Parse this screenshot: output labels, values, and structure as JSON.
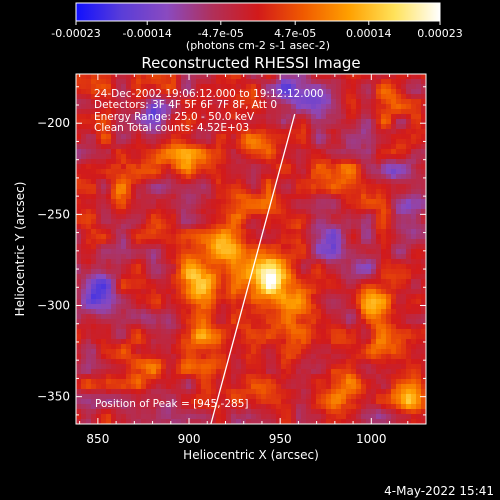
{
  "colorbar": {
    "stops": [
      "#1010ff",
      "#5a3dd8",
      "#8a4ac0",
      "#b0305a",
      "#d21a1a",
      "#f05a00",
      "#ffa000",
      "#ffe25a",
      "#ffffff"
    ],
    "ticks": [
      "-0.00023",
      "-0.00014",
      "-4.7e-05",
      "4.7e-05",
      "0.00014",
      "0.00023"
    ],
    "unit_label": "(photons cm-2 s-1 asec-2)"
  },
  "chart_data": {
    "type": "heatmap",
    "title": "Reconstructed RHESSI Image",
    "xlabel": "Heliocentric X (arcsec)",
    "ylabel": "Heliocentric Y (arcsec)",
    "xlim": [
      838,
      1030
    ],
    "ylim": [
      -365,
      -173
    ],
    "xticks": [
      850,
      900,
      950,
      1000
    ],
    "yticks": [
      -200,
      -250,
      -300,
      -350
    ],
    "vrange": [
      -0.00023,
      0.00023
    ],
    "sources": [
      {
        "x": 945,
        "y": -285,
        "amp": 0.00023,
        "sx": 9,
        "sy": 8
      },
      {
        "x": 905,
        "y": -288,
        "amp": 0.00019,
        "sx": 10,
        "sy": 9
      },
      {
        "x": 920,
        "y": -265,
        "amp": 0.00012,
        "sx": 7,
        "sy": 9
      },
      {
        "x": 930,
        "y": -245,
        "amp": 0.0001,
        "sx": 8,
        "sy": 6
      },
      {
        "x": 905,
        "y": -320,
        "amp": 0.00011,
        "sx": 8,
        "sy": 10
      },
      {
        "x": 960,
        "y": -305,
        "amp": 0.00011,
        "sx": 8,
        "sy": 12
      },
      {
        "x": 1000,
        "y": -298,
        "amp": 0.00014,
        "sx": 6,
        "sy": 6
      },
      {
        "x": 1005,
        "y": -320,
        "amp": 0.00012,
        "sx": 5,
        "sy": 10
      },
      {
        "x": 1020,
        "y": -350,
        "amp": 0.00012,
        "sx": 6,
        "sy": 7
      },
      {
        "x": 895,
        "y": -218,
        "amp": 0.0001,
        "sx": 9,
        "sy": 6
      },
      {
        "x": 935,
        "y": -212,
        "amp": 8e-05,
        "sx": 7,
        "sy": 6
      },
      {
        "x": 985,
        "y": -225,
        "amp": 8e-05,
        "sx": 9,
        "sy": 6
      },
      {
        "x": 860,
        "y": -240,
        "amp": 7e-05,
        "sx": 6,
        "sy": 8
      },
      {
        "x": 875,
        "y": -330,
        "amp": 8e-05,
        "sx": 8,
        "sy": 8
      },
      {
        "x": 940,
        "y": -350,
        "amp": 8e-05,
        "sx": 12,
        "sy": 6
      },
      {
        "x": 985,
        "y": -345,
        "amp": 8e-05,
        "sx": 8,
        "sy": 8
      },
      {
        "x": 1010,
        "y": -190,
        "amp": 7e-05,
        "sx": 7,
        "sy": 7
      },
      {
        "x": 960,
        "y": -185,
        "amp": -0.00012,
        "sx": 10,
        "sy": 8
      },
      {
        "x": 850,
        "y": -290,
        "amp": -0.00012,
        "sx": 7,
        "sy": 12
      },
      {
        "x": 975,
        "y": -262,
        "amp": -0.0001,
        "sx": 8,
        "sy": 8
      },
      {
        "x": 1020,
        "y": -255,
        "amp": -8e-05,
        "sx": 7,
        "sy": 10
      },
      {
        "x": 880,
        "y": -195,
        "amp": -9e-05,
        "sx": 8,
        "sy": 6
      },
      {
        "x": 1015,
        "y": -225,
        "amp": -8e-05,
        "sx": 6,
        "sy": 6
      },
      {
        "x": 1000,
        "y": -275,
        "amp": -7e-05,
        "sx": 6,
        "sy": 6
      }
    ],
    "limb_line": [
      [
        912,
        -365
      ],
      [
        958,
        -195
      ]
    ],
    "annotations": [
      "24-Dec-2002 19:06:12.000 to 19:12:12.000",
      "Detectors: 3F 4F 5F 6F 7F 8F, Att 0",
      "Energy Range: 25.0 - 50.0 keV",
      "Clean     Total counts: 4.52E+03"
    ],
    "peak_label": "Position of Peak = [945,-285]",
    "peak": [
      945,
      -285
    ]
  },
  "footer": {
    "timestamp": "4-May-2022 15:41"
  }
}
